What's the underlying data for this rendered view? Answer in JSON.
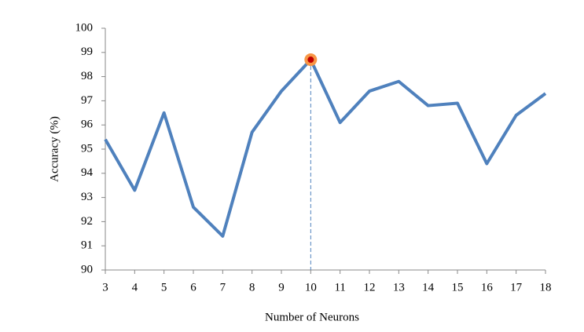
{
  "chart_data": {
    "type": "line",
    "x_label": "Number of Neurons",
    "y_label": "Accuracy (%)",
    "x": [
      3,
      4,
      5,
      6,
      7,
      8,
      9,
      10,
      11,
      12,
      13,
      14,
      15,
      16,
      17,
      18
    ],
    "series": [
      {
        "name": "Accuracy",
        "color": "#4f81bd",
        "values": [
          95.4,
          93.3,
          96.5,
          92.6,
          91.4,
          95.7,
          97.4,
          98.7,
          96.1,
          97.4,
          97.8,
          96.8,
          96.9,
          94.4,
          96.4,
          97.3
        ]
      }
    ],
    "highlight": {
      "x": 10,
      "color": "#c00000",
      "ring_color": "#f79646"
    },
    "xlim": [
      3,
      18
    ],
    "xticks": [
      3,
      4,
      5,
      6,
      7,
      8,
      9,
      10,
      11,
      12,
      13,
      14,
      15,
      16,
      17,
      18
    ],
    "ylim": [
      90,
      100
    ],
    "yticks": [
      90,
      91,
      92,
      93,
      94,
      95,
      96,
      97,
      98,
      99,
      100
    ],
    "grid": false
  }
}
